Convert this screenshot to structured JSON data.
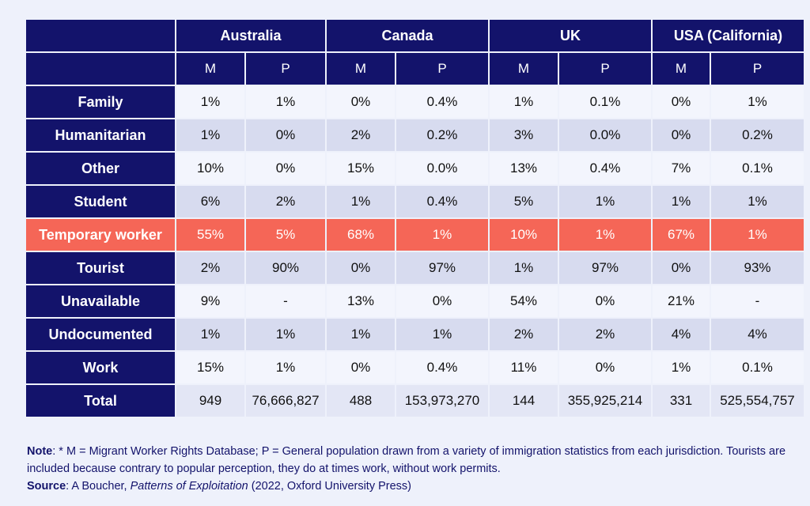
{
  "table": {
    "countries": [
      "Australia",
      "Canada",
      "UK",
      "USA (California)"
    ],
    "subheaders": [
      "M",
      "P",
      "M",
      "P",
      "M",
      "P",
      "M",
      "P"
    ],
    "rows": [
      {
        "label": "Family",
        "values": [
          "1%",
          "1%",
          "0%",
          "0.4%",
          "1%",
          "0.1%",
          "0%",
          "1%"
        ]
      },
      {
        "label": "Humanitarian",
        "values": [
          "1%",
          "0%",
          "2%",
          "0.2%",
          "3%",
          "0.0%",
          "0%",
          "0.2%"
        ]
      },
      {
        "label": "Other",
        "values": [
          "10%",
          "0%",
          "15%",
          "0.0%",
          "13%",
          "0.4%",
          "7%",
          "0.1%"
        ]
      },
      {
        "label": "Student",
        "values": [
          "6%",
          "2%",
          "1%",
          "0.4%",
          "5%",
          "1%",
          "1%",
          "1%"
        ]
      },
      {
        "label": "Temporary worker",
        "values": [
          "55%",
          "5%",
          "68%",
          "1%",
          "10%",
          "1%",
          "67%",
          "1%"
        ]
      },
      {
        "label": "Tourist",
        "values": [
          "2%",
          "90%",
          "0%",
          "97%",
          "1%",
          "97%",
          "0%",
          "93%"
        ]
      },
      {
        "label": "Unavailable",
        "values": [
          "9%",
          "-",
          "13%",
          "0%",
          "54%",
          "0%",
          "21%",
          "-"
        ]
      },
      {
        "label": "Undocumented",
        "values": [
          "1%",
          "1%",
          "1%",
          "1%",
          "2%",
          "2%",
          "4%",
          "4%"
        ]
      },
      {
        "label": "Work",
        "values": [
          "15%",
          "1%",
          "0%",
          "0.4%",
          "11%",
          "0%",
          "1%",
          "0.1%"
        ]
      },
      {
        "label": "Total",
        "values": [
          "949",
          "76,666,827",
          "488",
          "153,973,270",
          "144",
          "355,925,214",
          "331",
          "525,554,757"
        ]
      }
    ],
    "highlight_color": "#f56657",
    "header_color": "#13136b"
  },
  "note": {
    "note_label": "Note",
    "note_text": ": * M = Migrant Worker Rights Database; P = General population drawn from a variety of immigration statistics from each jurisdiction. Tourists are included because contrary to popular perception, they do at times work, without work permits.",
    "source_label": "Source",
    "source_prefix": ": A Boucher, ",
    "source_title": "Patterns of Exploitation",
    "source_suffix": " (2022, Oxford University Press)"
  }
}
